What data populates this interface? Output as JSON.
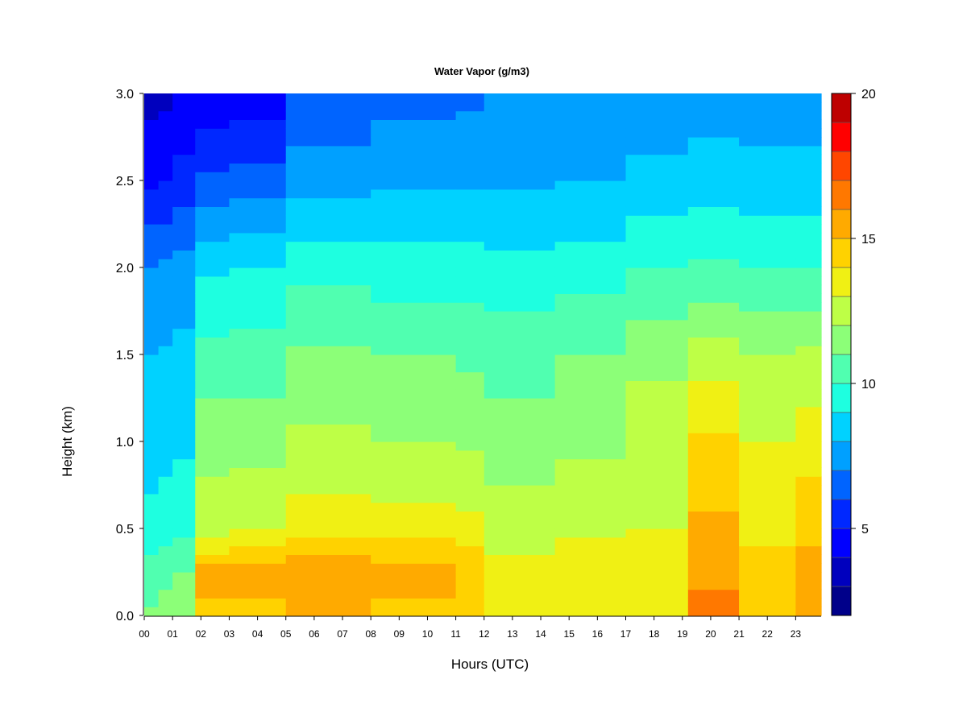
{
  "chart_data": {
    "type": "heatmap",
    "title": "Water Vapor (g/m3)",
    "xlabel": "Hours (UTC)",
    "ylabel": "Height (km)",
    "x_ticks": [
      "00",
      "01",
      "02",
      "03",
      "04",
      "05",
      "06",
      "07",
      "08",
      "09",
      "10",
      "11",
      "12",
      "13",
      "14",
      "15",
      "16",
      "17",
      "18",
      "19",
      "20",
      "21",
      "22",
      "23"
    ],
    "x_range": [
      0,
      23.9
    ],
    "y_ticks": [
      "0.0",
      "0.5",
      "1.0",
      "1.5",
      "2.0",
      "2.5",
      "3.0"
    ],
    "y_range": [
      0,
      3.0
    ],
    "colorbar": {
      "ticks": [
        "5",
        "10",
        "15",
        "20"
      ],
      "range": [
        2,
        20
      ],
      "levels": [
        2,
        3,
        4,
        5,
        6,
        7,
        8,
        9,
        10,
        11,
        12,
        13,
        14,
        15,
        16,
        17,
        18,
        19,
        20
      ],
      "colors": [
        "#00008a",
        "#0000be",
        "#0000ff",
        "#0028ff",
        "#0064ff",
        "#00a0ff",
        "#00d2ff",
        "#1effe0",
        "#50ffb0",
        "#8cff78",
        "#beff46",
        "#f0f014",
        "#ffd200",
        "#ffaa00",
        "#ff7800",
        "#ff4600",
        "#ff0000",
        "#be0000",
        "#800000"
      ]
    },
    "grid": false,
    "columns": [
      {
        "x0": 0.0,
        "x1": 0.5,
        "profile": [
          [
            0,
            11.2
          ],
          [
            0.3,
            10.2
          ],
          [
            0.5,
            9.4
          ],
          [
            1.0,
            8.5
          ],
          [
            1.5,
            8.0
          ],
          [
            2.0,
            7.0
          ],
          [
            2.5,
            4.8
          ],
          [
            3.0,
            3.6
          ]
        ]
      },
      {
        "x0": 0.5,
        "x1": 1.0,
        "profile": [
          [
            0,
            11.5
          ],
          [
            0.3,
            10.5
          ],
          [
            0.5,
            9.5
          ],
          [
            1.0,
            8.6
          ],
          [
            1.5,
            8.1
          ],
          [
            2.0,
            7.2
          ],
          [
            2.5,
            5.0
          ],
          [
            3.0,
            3.8
          ]
        ]
      },
      {
        "x0": 1.0,
        "x1": 1.8,
        "profile": [
          [
            0,
            12.0
          ],
          [
            0.3,
            10.8
          ],
          [
            0.5,
            9.7
          ],
          [
            1.0,
            8.8
          ],
          [
            1.5,
            8.3
          ],
          [
            2.0,
            7.4
          ],
          [
            2.5,
            5.4
          ],
          [
            3.0,
            4.0
          ]
        ]
      },
      {
        "x0": 1.8,
        "x1": 3.0,
        "profile": [
          [
            0,
            14.8
          ],
          [
            0.25,
            15.3
          ],
          [
            0.4,
            13.6
          ],
          [
            0.5,
            12.6
          ],
          [
            1.0,
            11.6
          ],
          [
            1.5,
            10.3
          ],
          [
            2.0,
            8.8
          ],
          [
            2.5,
            6.2
          ],
          [
            3.0,
            4.2
          ]
        ]
      },
      {
        "x0": 3.0,
        "x1": 5.0,
        "profile": [
          [
            0,
            14.8
          ],
          [
            0.25,
            15.3
          ],
          [
            0.4,
            13.8
          ],
          [
            0.5,
            12.8
          ],
          [
            1.0,
            11.6
          ],
          [
            1.5,
            10.5
          ],
          [
            2.0,
            9.0
          ],
          [
            2.5,
            6.4
          ],
          [
            3.0,
            4.4
          ]
        ]
      },
      {
        "x0": 5.0,
        "x1": 8.0,
        "profile": [
          [
            0,
            15.0
          ],
          [
            0.25,
            15.6
          ],
          [
            0.4,
            14.4
          ],
          [
            0.6,
            13.3
          ],
          [
            1.0,
            12.2
          ],
          [
            1.5,
            11.2
          ],
          [
            2.0,
            9.6
          ],
          [
            2.5,
            7.6
          ],
          [
            3.0,
            6.2
          ]
        ]
      },
      {
        "x0": 8.0,
        "x1": 11.0,
        "profile": [
          [
            0,
            14.6
          ],
          [
            0.25,
            15.4
          ],
          [
            0.4,
            14.2
          ],
          [
            0.6,
            13.1
          ],
          [
            1.0,
            12.0
          ],
          [
            1.5,
            11.0
          ],
          [
            2.0,
            9.4
          ],
          [
            2.5,
            7.8
          ],
          [
            3.0,
            6.6
          ]
        ]
      },
      {
        "x0": 11.0,
        "x1": 12.0,
        "profile": [
          [
            0,
            14.2
          ],
          [
            0.25,
            15.0
          ],
          [
            0.4,
            13.8
          ],
          [
            0.6,
            12.9
          ],
          [
            1.0,
            11.8
          ],
          [
            1.5,
            10.8
          ],
          [
            2.0,
            9.4
          ],
          [
            2.5,
            7.8
          ],
          [
            3.0,
            6.8
          ]
        ]
      },
      {
        "x0": 12.0,
        "x1": 14.5,
        "profile": [
          [
            0,
            13.6
          ],
          [
            0.3,
            13.2
          ],
          [
            0.5,
            12.6
          ],
          [
            1.0,
            11.4
          ],
          [
            1.5,
            10.6
          ],
          [
            2.0,
            9.3
          ],
          [
            2.5,
            7.9
          ],
          [
            3.0,
            7.0
          ]
        ]
      },
      {
        "x0": 14.5,
        "x1": 17.0,
        "profile": [
          [
            0,
            13.8
          ],
          [
            0.3,
            13.8
          ],
          [
            0.5,
            12.8
          ],
          [
            1.0,
            11.8
          ],
          [
            1.5,
            11.0
          ],
          [
            2.0,
            9.5
          ],
          [
            2.5,
            8.0
          ],
          [
            3.0,
            7.2
          ]
        ]
      },
      {
        "x0": 17.0,
        "x1": 19.2,
        "profile": [
          [
            0,
            13.8
          ],
          [
            0.3,
            13.6
          ],
          [
            0.5,
            13.0
          ],
          [
            1.0,
            12.5
          ],
          [
            1.5,
            11.8
          ],
          [
            2.0,
            10.0
          ],
          [
            2.5,
            8.3
          ],
          [
            3.0,
            7.4
          ]
        ]
      },
      {
        "x0": 19.2,
        "x1": 21.0,
        "profile": [
          [
            0,
            16.4
          ],
          [
            0.3,
            15.6
          ],
          [
            0.6,
            15.0
          ],
          [
            1.0,
            14.2
          ],
          [
            1.5,
            12.4
          ],
          [
            2.0,
            10.2
          ],
          [
            2.5,
            8.5
          ],
          [
            3.0,
            7.5
          ]
        ]
      },
      {
        "x0": 21.0,
        "x1": 23.0,
        "profile": [
          [
            0,
            14.6
          ],
          [
            0.3,
            14.2
          ],
          [
            0.6,
            13.6
          ],
          [
            1.0,
            13.0
          ],
          [
            1.5,
            12.0
          ],
          [
            2.0,
            10.0
          ],
          [
            2.5,
            8.4
          ],
          [
            3.0,
            7.5
          ]
        ]
      },
      {
        "x0": 23.0,
        "x1": 23.9,
        "profile": [
          [
            0,
            15.4
          ],
          [
            0.3,
            15.2
          ],
          [
            0.6,
            14.4
          ],
          [
            1.0,
            13.6
          ],
          [
            1.5,
            12.2
          ],
          [
            2.0,
            10.0
          ],
          [
            2.5,
            8.4
          ],
          [
            3.0,
            7.4
          ]
        ]
      }
    ]
  }
}
